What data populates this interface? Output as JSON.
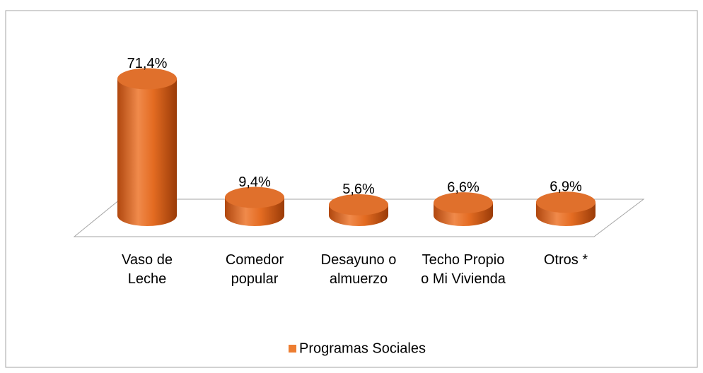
{
  "chart_data": {
    "type": "bar3d",
    "categories": [
      "Vaso de Leche",
      "Comedor popular",
      "Desayuno o almuerzo",
      "Techo Propio o Mi Vivienda",
      "Otros *"
    ],
    "series": [
      {
        "name": "Programas Sociales",
        "color": "#ed7d31",
        "values": [
          71.4,
          9.4,
          5.6,
          6.6,
          6.9
        ],
        "value_labels": [
          "71,4%",
          "9,4%",
          "5,6%",
          "6,6%",
          "6,9%"
        ]
      }
    ],
    "legend": "bottom"
  }
}
